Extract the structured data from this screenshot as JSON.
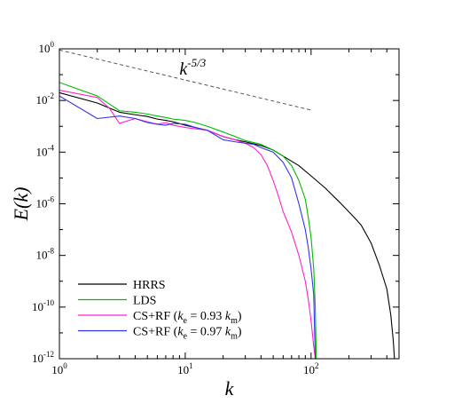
{
  "chart_data": {
    "type": "line",
    "xlabel": "k",
    "ylabel": "E(k)",
    "x_scale": "log",
    "y_scale": "log",
    "xlim": [
      1,
      500
    ],
    "ylim": [
      1e-12,
      1
    ],
    "grid": false,
    "legend_position": "bottom-left",
    "x_ticks": [
      {
        "value": 1,
        "base": "10",
        "exp": "0"
      },
      {
        "value": 10,
        "base": "10",
        "exp": "1"
      },
      {
        "value": 100,
        "base": "10",
        "exp": "2"
      }
    ],
    "y_ticks": [
      {
        "value": 1,
        "base": "10",
        "exp": "0"
      },
      {
        "value": 0.01,
        "base": "10",
        "exp": "-2"
      },
      {
        "value": 0.0001,
        "base": "10",
        "exp": "-4"
      },
      {
        "value": 1e-06,
        "base": "10",
        "exp": "-6"
      },
      {
        "value": 1e-08,
        "base": "10",
        "exp": "-8"
      },
      {
        "value": 1e-10,
        "base": "10",
        "exp": "-10"
      },
      {
        "value": 1e-12,
        "base": "10",
        "exp": "-12"
      }
    ],
    "annotation": {
      "base": "k",
      "exp": "-5/3",
      "anchor_x": 9,
      "anchor_y": 0.1
    },
    "reference_line": {
      "name": "k^-5/3",
      "color": "#555555",
      "dashed": true,
      "points": [
        [
          1,
          0.9
        ],
        [
          100,
          0.00425
        ]
      ]
    },
    "series": [
      {
        "name": "HRRS",
        "color": "#000000",
        "points": [
          [
            1,
            0.02
          ],
          [
            2,
            0.008
          ],
          [
            3,
            0.0035
          ],
          [
            4,
            0.0028
          ],
          [
            5,
            0.0024
          ],
          [
            6,
            0.0019
          ],
          [
            7,
            0.0017
          ],
          [
            8,
            0.0015
          ],
          [
            10,
            0.0011
          ],
          [
            12,
            0.0009
          ],
          [
            15,
            0.0007
          ],
          [
            20,
            0.0004
          ],
          [
            25,
            0.0003
          ],
          [
            30,
            0.00025
          ],
          [
            40,
            0.00018
          ],
          [
            50,
            0.00012
          ],
          [
            60,
            7e-05
          ],
          [
            80,
            3e-05
          ],
          [
            100,
            1.2e-05
          ],
          [
            130,
            4e-06
          ],
          [
            170,
            1.1e-06
          ],
          [
            220,
            3e-07
          ],
          [
            250,
            1.5e-07
          ],
          [
            300,
            3e-08
          ],
          [
            350,
            4e-09
          ],
          [
            400,
            5e-10
          ],
          [
            430,
            5e-11
          ],
          [
            450,
            5e-12
          ],
          [
            460,
            1e-12
          ]
        ]
      },
      {
        "name": "LDS",
        "color": "#00bb00",
        "points": [
          [
            1,
            0.05
          ],
          [
            2,
            0.015
          ],
          [
            3,
            0.004
          ],
          [
            4,
            0.0035
          ],
          [
            5,
            0.003
          ],
          [
            6,
            0.0025
          ],
          [
            7,
            0.0022
          ],
          [
            8,
            0.0019
          ],
          [
            10,
            0.0017
          ],
          [
            12,
            0.0014
          ],
          [
            15,
            0.001
          ],
          [
            20,
            0.0006
          ],
          [
            25,
            0.0004
          ],
          [
            30,
            0.00028
          ],
          [
            40,
            0.0002
          ],
          [
            50,
            0.00012
          ],
          [
            60,
            7e-05
          ],
          [
            70,
            3e-05
          ],
          [
            80,
            8e-06
          ],
          [
            90,
            1.5e-06
          ],
          [
            95,
            3e-07
          ],
          [
            100,
            5e-08
          ],
          [
            105,
            3e-09
          ],
          [
            108,
            1e-10
          ],
          [
            110,
            1e-12
          ]
        ]
      },
      {
        "name": "CS+RF (k_e = 0.93 k_m)",
        "legend_parts": {
          "prefix": "CS+RF (",
          "k": "k",
          "sub_e": "e",
          "eq": " = 0.93 ",
          "sub_m": "m",
          "suffix": ")"
        },
        "color": "#ff22cc",
        "points": [
          [
            1,
            0.025
          ],
          [
            2,
            0.013
          ],
          [
            2.5,
            0.005
          ],
          [
            3,
            0.0013
          ],
          [
            4,
            0.002
          ],
          [
            5,
            0.0015
          ],
          [
            6,
            0.0012
          ],
          [
            7,
            0.0014
          ],
          [
            8,
            0.0011
          ],
          [
            10,
            0.0009
          ],
          [
            12,
            0.0008
          ],
          [
            15,
            0.0007
          ],
          [
            20,
            0.0004
          ],
          [
            25,
            0.0003
          ],
          [
            30,
            0.00022
          ],
          [
            35,
            0.00015
          ],
          [
            40,
            8e-05
          ],
          [
            45,
            3e-05
          ],
          [
            50,
            8e-06
          ],
          [
            55,
            2e-06
          ],
          [
            60,
            5e-07
          ],
          [
            70,
            8e-08
          ],
          [
            80,
            1e-08
          ],
          [
            90,
            1e-09
          ],
          [
            95,
            2e-10
          ],
          [
            100,
            3e-11
          ],
          [
            105,
            3e-12
          ],
          [
            108,
            1e-12
          ]
        ]
      },
      {
        "name": "CS+RF (k_e = 0.97 k_m)",
        "legend_parts": {
          "prefix": "CS+RF (",
          "k": "k",
          "sub_e": "e",
          "eq": " = 0.97 ",
          "sub_m": "m",
          "suffix": ")"
        },
        "color": "#3333ee",
        "points": [
          [
            1,
            0.015
          ],
          [
            2,
            0.002
          ],
          [
            3,
            0.0025
          ],
          [
            4,
            0.002
          ],
          [
            5,
            0.0014
          ],
          [
            6,
            0.0012
          ],
          [
            7,
            0.0011
          ],
          [
            8,
            0.0013
          ],
          [
            10,
            0.0012
          ],
          [
            12,
            0.0009
          ],
          [
            15,
            0.0007
          ],
          [
            20,
            0.0003
          ],
          [
            25,
            0.00025
          ],
          [
            30,
            0.00022
          ],
          [
            35,
            0.0002
          ],
          [
            40,
            0.00015
          ],
          [
            50,
            0.0001
          ],
          [
            60,
            4e-05
          ],
          [
            70,
            1e-05
          ],
          [
            80,
            1e-06
          ],
          [
            90,
            1e-07
          ],
          [
            95,
            2e-08
          ],
          [
            100,
            3e-09
          ],
          [
            105,
            3e-10
          ],
          [
            108,
            1e-12
          ]
        ]
      }
    ]
  }
}
